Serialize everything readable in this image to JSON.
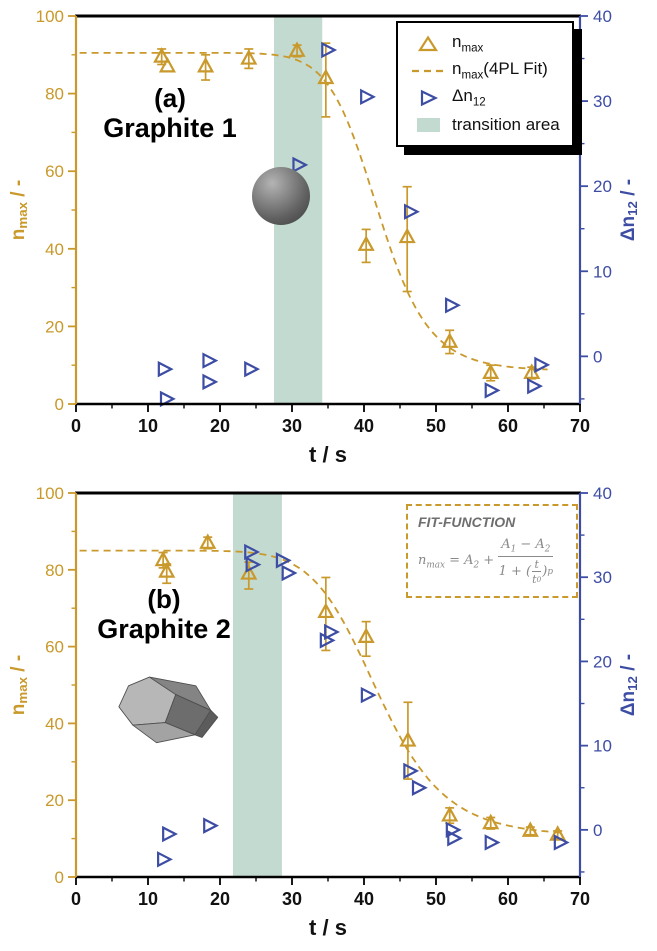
{
  "colors": {
    "nmax_orange": "#C9992B",
    "dn12_blue": "#3D4DA4",
    "transition_band": "#C3DAD0",
    "axis_black": "#1a1a1a",
    "fitbox_text": "#8a8a8a"
  },
  "chart_data": {
    "type": "scatter",
    "panels": [
      {
        "label_letter": "(a)",
        "label_name": "Graphite 1",
        "xlabel": "t / s",
        "ylabel_left": "n_{max} / -",
        "ylabel_right": "Δn_{12} / -",
        "xlim": [
          0,
          70
        ],
        "ylim_left": [
          0,
          100
        ],
        "ylim_right": [
          -5.6,
          40
        ],
        "x_ticks": [
          0,
          10,
          20,
          30,
          40,
          50,
          60,
          70
        ],
        "x_minor_step": 5,
        "y_left_ticks": [
          0,
          20,
          40,
          60,
          80,
          100
        ],
        "y_left_minor_step": 10,
        "y_right_ticks": [
          0,
          10,
          20,
          30,
          40
        ],
        "y_right_minor_step": 5,
        "transition_area": [
          27.5,
          34.2
        ],
        "fit": {
          "A1": 90.5,
          "A2": 8.5,
          "t0": 42,
          "p": 12,
          "domain": [
            0.5,
            65.5
          ]
        },
        "nmax": [
          {
            "t": 11.9,
            "n": 89.5,
            "e": [
              2,
              2
            ]
          },
          {
            "t": 12.7,
            "n": 87,
            "e": [
              0,
              0
            ]
          },
          {
            "t": 18,
            "n": 87,
            "e": [
              3.5,
              3
            ]
          },
          {
            "t": 24,
            "n": 89,
            "e": [
              2.5,
              2.5
            ]
          },
          {
            "t": 30.7,
            "n": 91,
            "e": [
              1.5,
              1.5
            ]
          },
          {
            "t": 34.7,
            "n": 84,
            "e": [
              10,
              9
            ]
          },
          {
            "t": 40.3,
            "n": 41,
            "e": [
              4.5,
              4
            ]
          },
          {
            "t": 46,
            "n": 43,
            "e": [
              14,
              13
            ]
          },
          {
            "t": 51.9,
            "n": 16,
            "e": [
              3,
              3
            ]
          },
          {
            "t": 57.6,
            "n": 8,
            "e": [
              2,
              2
            ]
          },
          {
            "t": 63.3,
            "n": 8,
            "e": [
              1.5,
              1.5
            ]
          }
        ],
        "dn12": [
          {
            "t": 12.2,
            "v": -1.5
          },
          {
            "t": 12.5,
            "v": -5
          },
          {
            "t": 18.4,
            "v": -0.5
          },
          {
            "t": 18.4,
            "v": -3
          },
          {
            "t": 24.2,
            "v": -1.5
          },
          {
            "t": 30.9,
            "v": 22.5
          },
          {
            "t": 34.9,
            "v": 36
          },
          {
            "t": 40.3,
            "v": 30.5
          },
          {
            "t": 46.4,
            "v": 17
          },
          {
            "t": 52.1,
            "v": 6
          },
          {
            "t": 57.6,
            "v": -4
          },
          {
            "t": 63.5,
            "v": -3.5
          },
          {
            "t": 64.5,
            "v": -1
          }
        ],
        "legend": {
          "items": [
            {
              "marker": "triangle-up",
              "label": "n_{max}"
            },
            {
              "marker": "dashed-line",
              "label": "n_{max}(4PL Fit)"
            },
            {
              "marker": "triangle-right",
              "label": "Δn_{12}"
            },
            {
              "marker": "swatch",
              "label": "transition area"
            }
          ]
        }
      },
      {
        "label_letter": "(b)",
        "label_name": "Graphite 2",
        "xlabel": "t / s",
        "ylabel_left": "n_{max} / -",
        "ylabel_right": "Δn_{12} / -",
        "xlim": [
          0,
          70
        ],
        "ylim_left": [
          0,
          100
        ],
        "ylim_right": [
          -5.6,
          40
        ],
        "x_ticks": [
          0,
          10,
          20,
          30,
          40,
          50,
          60,
          70
        ],
        "x_minor_step": 5,
        "y_left_ticks": [
          0,
          20,
          40,
          60,
          80,
          100
        ],
        "y_left_minor_step": 10,
        "y_right_ticks": [
          0,
          10,
          20,
          30,
          40
        ],
        "y_right_minor_step": 5,
        "transition_area": [
          21.8,
          28.6
        ],
        "fit": {
          "A1": 85,
          "A2": 10.5,
          "t0": 42,
          "p": 9,
          "domain": [
            0.5,
            67.5
          ]
        },
        "nmax": [
          {
            "t": 12.1,
            "n": 82.5,
            "e": [
              2,
              2
            ]
          },
          {
            "t": 12.6,
            "n": 79.5,
            "e": [
              3,
              2
            ]
          },
          {
            "t": 18.3,
            "n": 87,
            "e": [
              1.5,
              1.5
            ]
          },
          {
            "t": 24,
            "n": 79,
            "e": [
              4,
              3
            ]
          },
          {
            "t": 34.7,
            "n": 69,
            "e": [
              10,
              9
            ]
          },
          {
            "t": 40.3,
            "n": 62.5,
            "e": [
              5,
              4
            ]
          },
          {
            "t": 46.1,
            "n": 35.5,
            "e": [
              10,
              10
            ]
          },
          {
            "t": 51.9,
            "n": 16,
            "e": [
              2,
              2
            ]
          },
          {
            "t": 57.6,
            "n": 14,
            "e": [
              1.5,
              1.5
            ]
          },
          {
            "t": 63.1,
            "n": 12,
            "e": [
              1,
              1
            ]
          },
          {
            "t": 66.9,
            "n": 11,
            "e": [
              1,
              1
            ]
          }
        ],
        "dn12": [
          {
            "t": 12.1,
            "v": -3.5
          },
          {
            "t": 12.8,
            "v": -0.5
          },
          {
            "t": 18.5,
            "v": 0.5
          },
          {
            "t": 24.2,
            "v": 33
          },
          {
            "t": 24.4,
            "v": 31.5
          },
          {
            "t": 28.6,
            "v": 32
          },
          {
            "t": 29.4,
            "v": 30.5
          },
          {
            "t": 34.7,
            "v": 22.5
          },
          {
            "t": 35.3,
            "v": 23.5
          },
          {
            "t": 40.4,
            "v": 16
          },
          {
            "t": 46.3,
            "v": 7
          },
          {
            "t": 47.5,
            "v": 5
          },
          {
            "t": 52.2,
            "v": 0
          },
          {
            "t": 52.4,
            "v": -1
          },
          {
            "t": 57.6,
            "v": -1.5
          },
          {
            "t": 67.2,
            "v": -1.5
          }
        ],
        "fitbox": {
          "title": "FIT-FUNCTION",
          "lhs": "n_{max} = A_{2} +",
          "num": "A_{1} − A_{2}",
          "den_pre": "1 + (",
          "den_num": "t",
          "den_den": "t_{0}",
          "den_close": ")",
          "exp": "p"
        }
      }
    ]
  }
}
